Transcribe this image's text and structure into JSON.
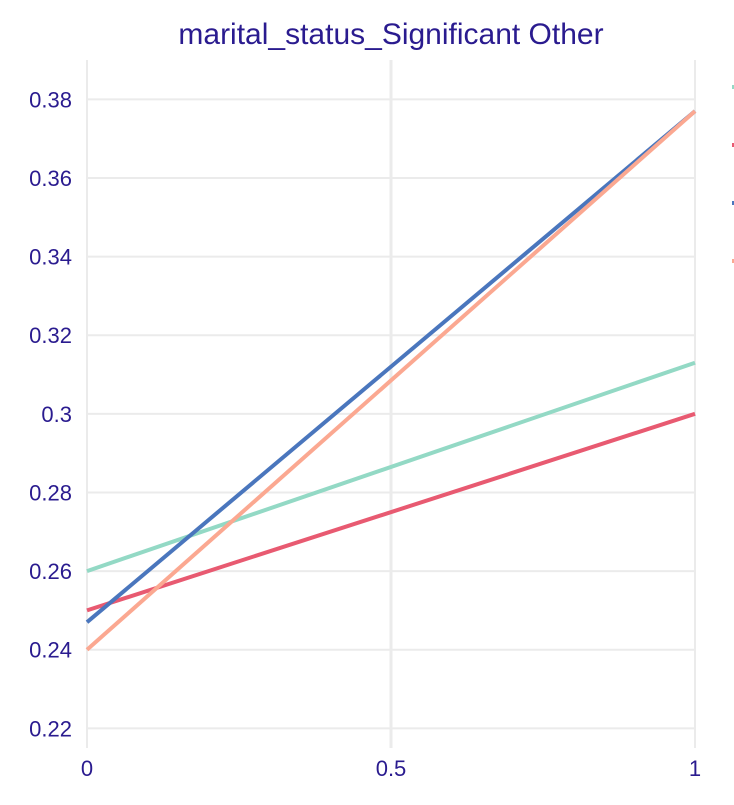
{
  "chart_data": {
    "type": "line",
    "title": "marital_status_Significant Other",
    "xlabel": "",
    "ylabel": "",
    "xlim": [
      0,
      1
    ],
    "ylim": [
      0.215,
      0.39
    ],
    "x_ticks": [
      0,
      0.5,
      1
    ],
    "x_tick_labels": [
      "0",
      "0.5",
      "1"
    ],
    "y_ticks": [
      0.22,
      0.24,
      0.26,
      0.28,
      0.3,
      0.32,
      0.34,
      0.36,
      0.38
    ],
    "y_tick_labels": [
      "0.22",
      "0.24",
      "0.26",
      "0.28",
      "0.3",
      "0.32",
      "0.34",
      "0.36",
      "0.38"
    ],
    "grid": true,
    "legend": "right",
    "series": [
      {
        "color": "#93d9c5",
        "x": [
          0,
          1
        ],
        "y": [
          0.26,
          0.313
        ]
      },
      {
        "color": "#e85a71",
        "x": [
          0,
          1
        ],
        "y": [
          0.25,
          0.3
        ]
      },
      {
        "color": "#4a76bd",
        "x": [
          0,
          1
        ],
        "y": [
          0.247,
          0.377
        ]
      },
      {
        "color": "#fba891",
        "x": [
          0,
          1
        ],
        "y": [
          0.24,
          0.377
        ]
      }
    ]
  },
  "colors": {
    "title": "#2a1b8f",
    "tick_label": "#2a1b8f",
    "grid": "#ebebeb",
    "background": "#ffffff"
  }
}
